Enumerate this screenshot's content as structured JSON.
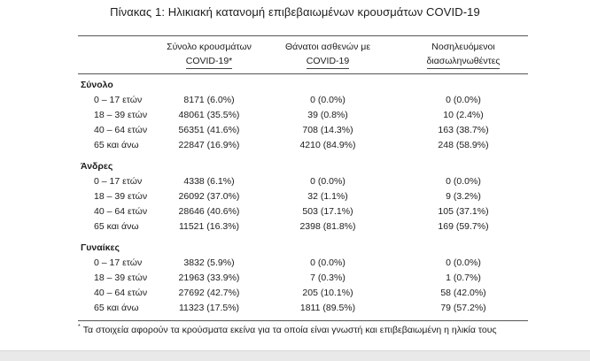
{
  "title": "Πίνακας 1: Ηλικιακή κατανομή επιβεβαιωμένων κρουσμάτων COVID-19",
  "columns": [
    {
      "line1": "Σύνολο κρουσμάτων",
      "line2": "COVID-19*"
    },
    {
      "line1": "Θάνατοι ασθενών με",
      "line2": "COVID-19"
    },
    {
      "line1": "Νοσηλευόμενοι",
      "line2": "διασωληνωθέντες"
    }
  ],
  "groups": [
    {
      "name": "Σύνολο",
      "rows": [
        {
          "age": "0 – 17 ετών",
          "cases": "8171 (6.0%)",
          "deaths": "0 (0.0%)",
          "intubated": "0 (0.0%)"
        },
        {
          "age": "18 – 39 ετών",
          "cases": "48061 (35.5%)",
          "deaths": "39 (0.8%)",
          "intubated": "10 (2.4%)"
        },
        {
          "age": "40 – 64 ετών",
          "cases": "56351 (41.6%)",
          "deaths": "708 (14.3%)",
          "intubated": "163 (38.7%)"
        },
        {
          "age": "65 και άνω",
          "cases": "22847 (16.9%)",
          "deaths": "4210 (84.9%)",
          "intubated": "248 (58.9%)"
        }
      ]
    },
    {
      "name": "Άνδρες",
      "rows": [
        {
          "age": "0 – 17 ετών",
          "cases": "4338 (6.1%)",
          "deaths": "0 (0.0%)",
          "intubated": "0 (0.0%)"
        },
        {
          "age": "18 – 39 ετών",
          "cases": "26092 (37.0%)",
          "deaths": "32 (1.1%)",
          "intubated": "9 (3.2%)"
        },
        {
          "age": "40 – 64 ετών",
          "cases": "28646 (40.6%)",
          "deaths": "503 (17.1%)",
          "intubated": "105 (37.1%)"
        },
        {
          "age": "65 και άνω",
          "cases": "11521 (16.3%)",
          "deaths": "2398 (81.8%)",
          "intubated": "169 (59.7%)"
        }
      ]
    },
    {
      "name": "Γυναίκες",
      "rows": [
        {
          "age": "0 – 17 ετών",
          "cases": "3832 (5.9%)",
          "deaths": "0 (0.0%)",
          "intubated": "0 (0.0%)"
        },
        {
          "age": "18 – 39 ετών",
          "cases": "21963 (33.9%)",
          "deaths": "7 (0.3%)",
          "intubated": "1 (0.7%)"
        },
        {
          "age": "40 – 64 ετών",
          "cases": "27692 (42.7%)",
          "deaths": "205 (10.1%)",
          "intubated": "58 (42.0%)"
        },
        {
          "age": "65 και άνω",
          "cases": "11323 (17.5%)",
          "deaths": "1811 (89.5%)",
          "intubated": "79 (57.2%)"
        }
      ]
    }
  ],
  "footnote": {
    "marker": "*",
    "text": "Τα στοιχεία αφορούν τα κρούσματα εκείνα για τα οποία είναι γνωστή και επιβεβαιωμένη η ηλικία τους"
  }
}
